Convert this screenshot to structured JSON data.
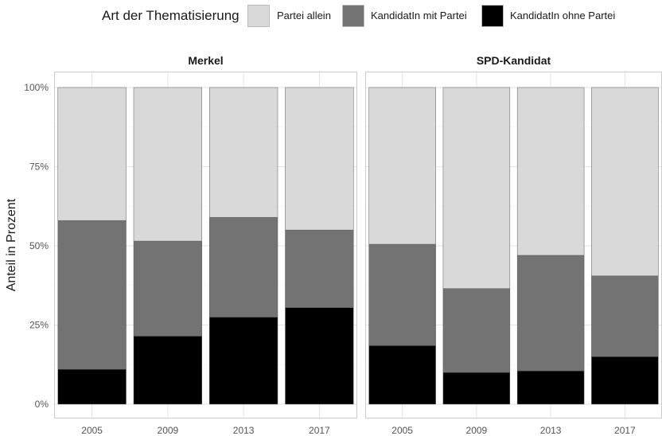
{
  "legend": {
    "title": "Art der Thematisierung",
    "items": [
      {
        "label": "Partei allein",
        "color": "#d9d9d9"
      },
      {
        "label": "KandidatIn mit Partei",
        "color": "#737373"
      },
      {
        "label": "KandidatIn ohne Partei",
        "color": "#000000"
      }
    ]
  },
  "chart_data": {
    "type": "bar",
    "stacked": true,
    "categories": [
      "2005",
      "2009",
      "2013",
      "2017"
    ],
    "ylabel": "Anteil in Prozent",
    "ylim": [
      0,
      100
    ],
    "yticks": [
      "0%",
      "25%",
      "50%",
      "75%",
      "100%"
    ],
    "grid": true,
    "legend_position": "top",
    "panels": [
      {
        "title": "Merkel",
        "series": [
          {
            "name": "KandidatIn ohne Partei",
            "values": [
              11,
              21.5,
              27.5,
              30.5
            ]
          },
          {
            "name": "KandidatIn mit Partei",
            "values": [
              47,
              30,
              31.5,
              24.5
            ]
          },
          {
            "name": "Partei allein",
            "values": [
              42,
              48.5,
              41,
              45
            ]
          }
        ]
      },
      {
        "title": "SPD-Kandidat",
        "series": [
          {
            "name": "KandidatIn ohne Partei",
            "values": [
              18.5,
              10,
              10.5,
              15
            ]
          },
          {
            "name": "KandidatIn mit Partei",
            "values": [
              32,
              26.5,
              36.5,
              25.5
            ]
          },
          {
            "name": "Partei allein",
            "values": [
              49.5,
              63.5,
              53,
              59.5
            ]
          }
        ]
      }
    ]
  }
}
